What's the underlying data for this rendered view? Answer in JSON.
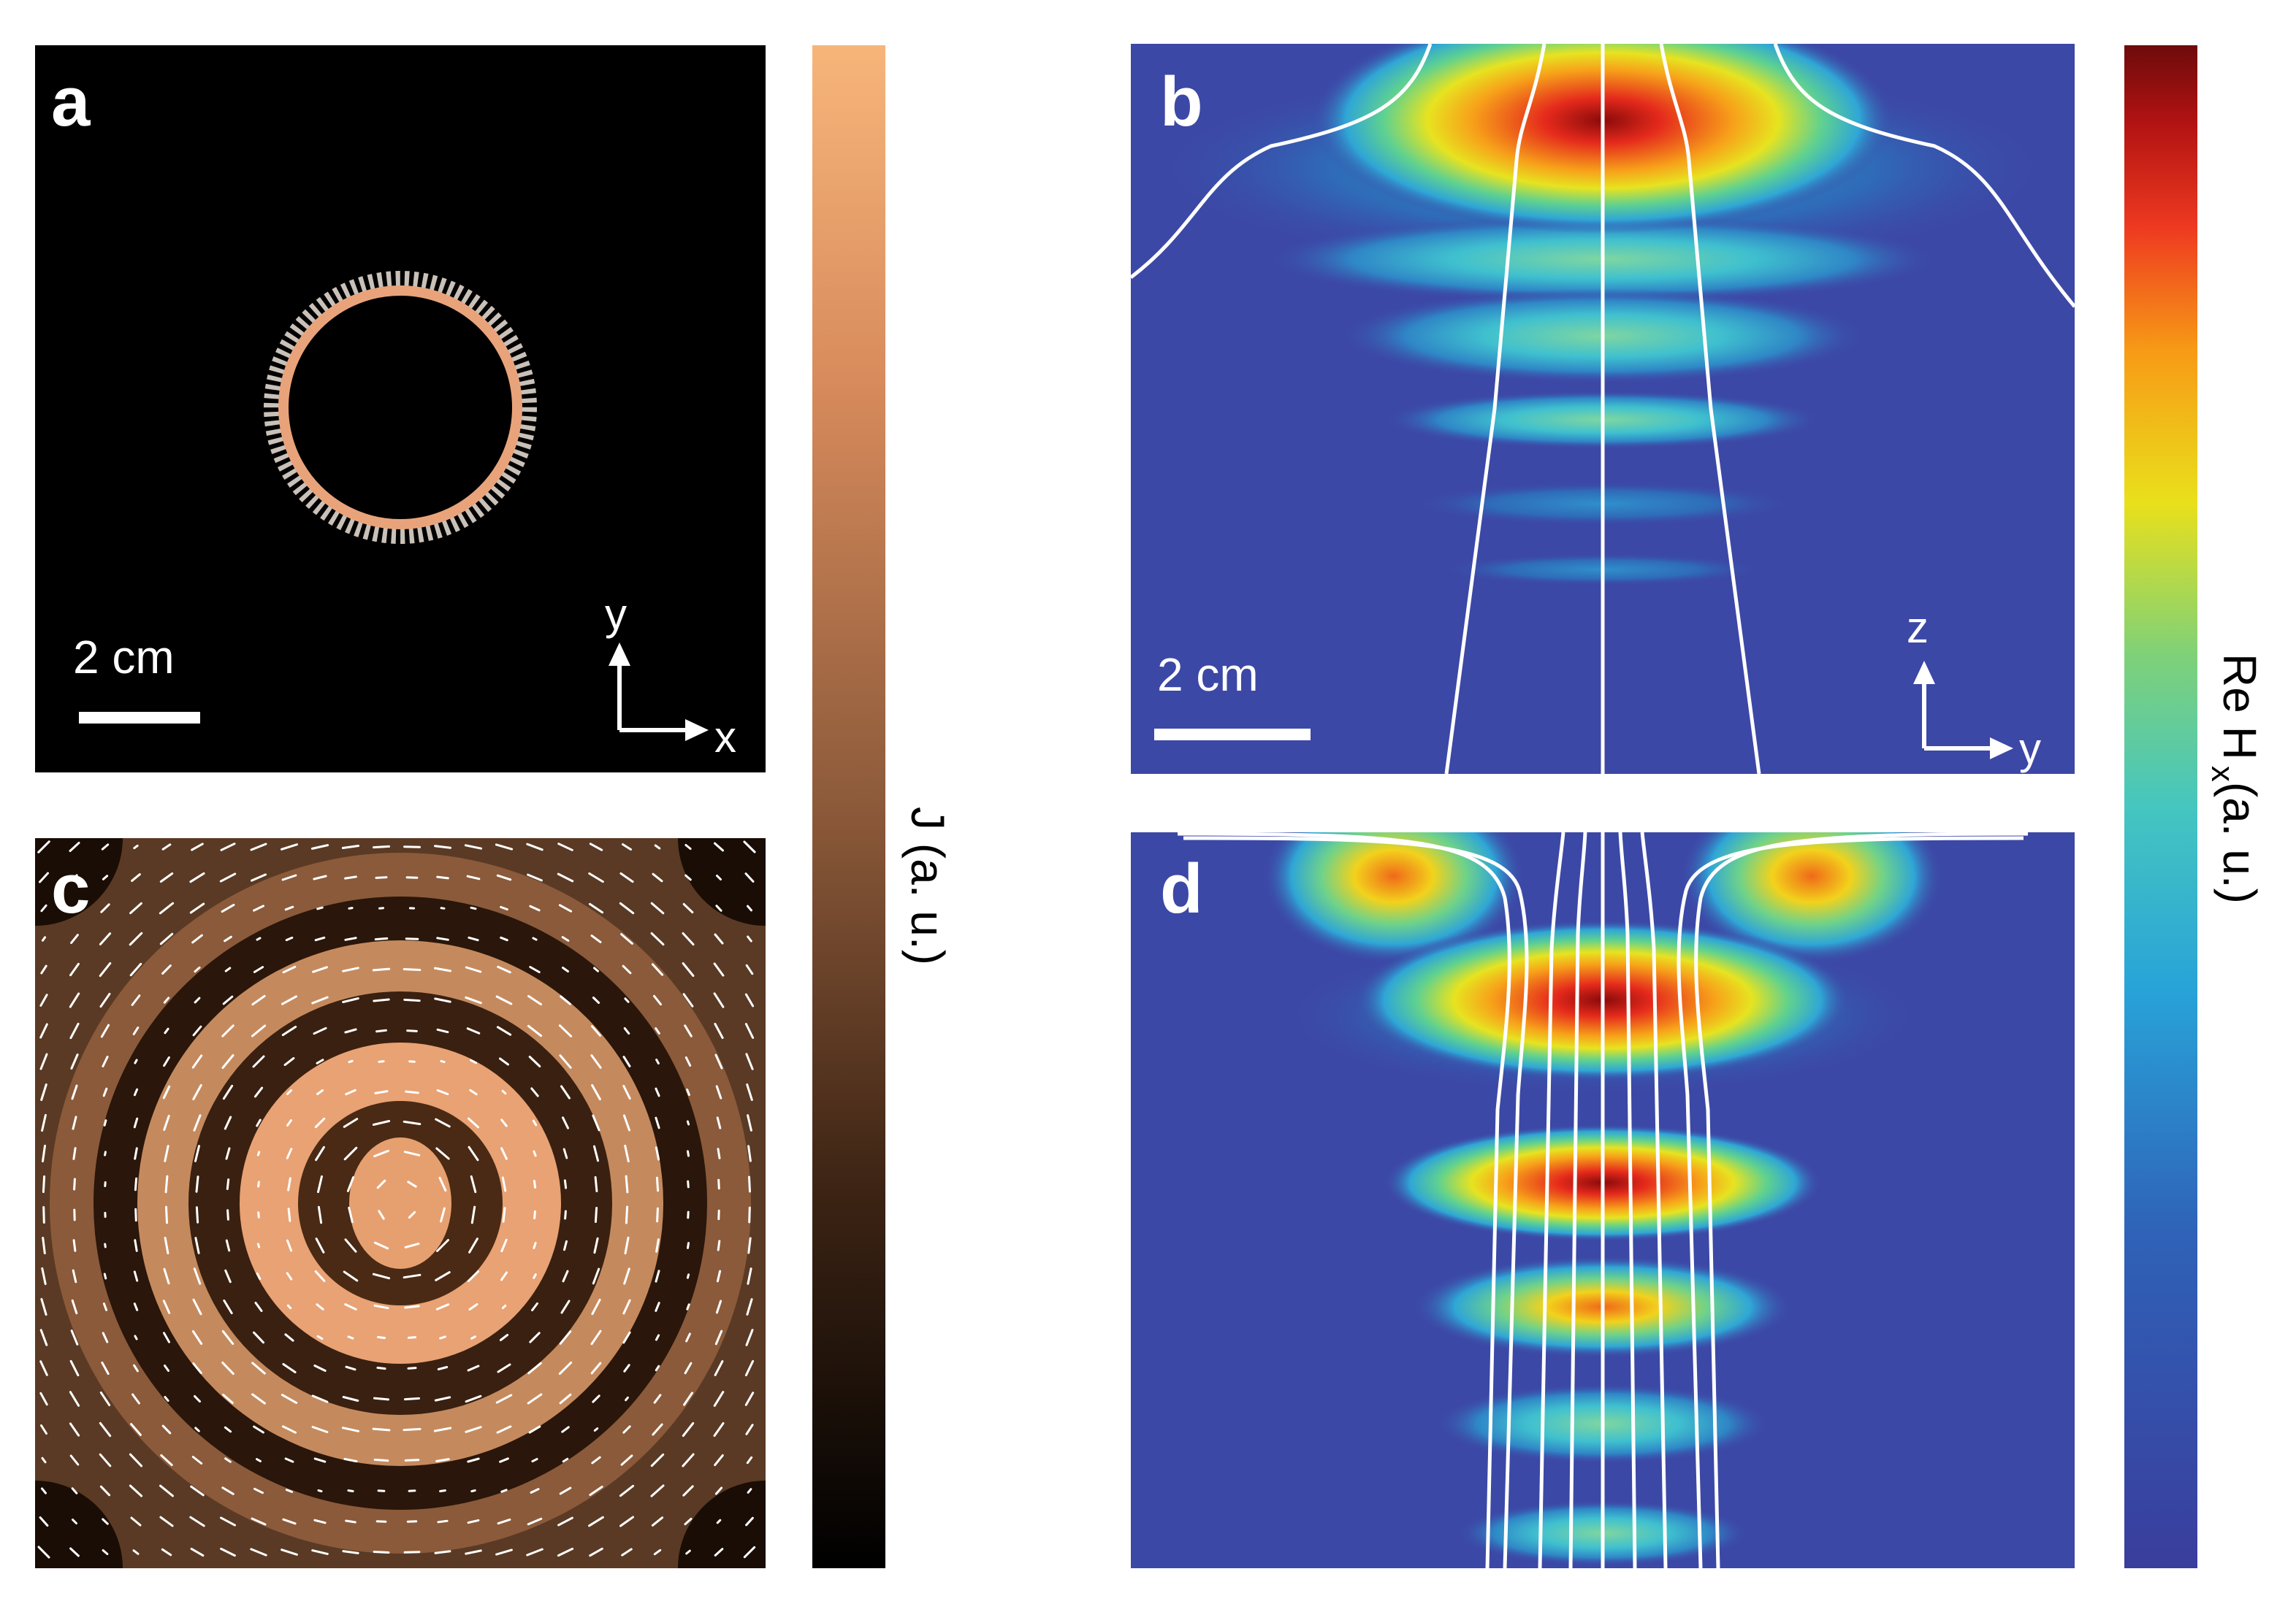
{
  "panels": {
    "a": {
      "label": "a",
      "scale_bar": "2 cm",
      "axes": {
        "vertical": "y",
        "horizontal": "x"
      }
    },
    "b": {
      "label": "b",
      "scale_bar": "2 cm",
      "axes": {
        "vertical": "z",
        "horizontal": "y"
      }
    },
    "c": {
      "label": "c"
    },
    "d": {
      "label": "d"
    }
  },
  "colorbars": {
    "left": {
      "title": "J (a. u.)",
      "gradient": [
        "#000000",
        "#3d2414",
        "#8c5a3a",
        "#d88b5c",
        "#f7b57a"
      ]
    },
    "right": {
      "title_main": "Re H",
      "title_sub": "x",
      "title_tail": "(a. u.)",
      "gradient": [
        "#3a3d9c",
        "#2f62b8",
        "#28a3d8",
        "#45c6c0",
        "#7fd178",
        "#e9e01b",
        "#f79a16",
        "#ee3a20",
        "#b11212",
        "#6e0b0b"
      ]
    }
  },
  "colors": {
    "background_dark": "#000000",
    "field_background": "#3c48a6",
    "streamlines": "#ffffff",
    "copper": "#e6a070"
  }
}
